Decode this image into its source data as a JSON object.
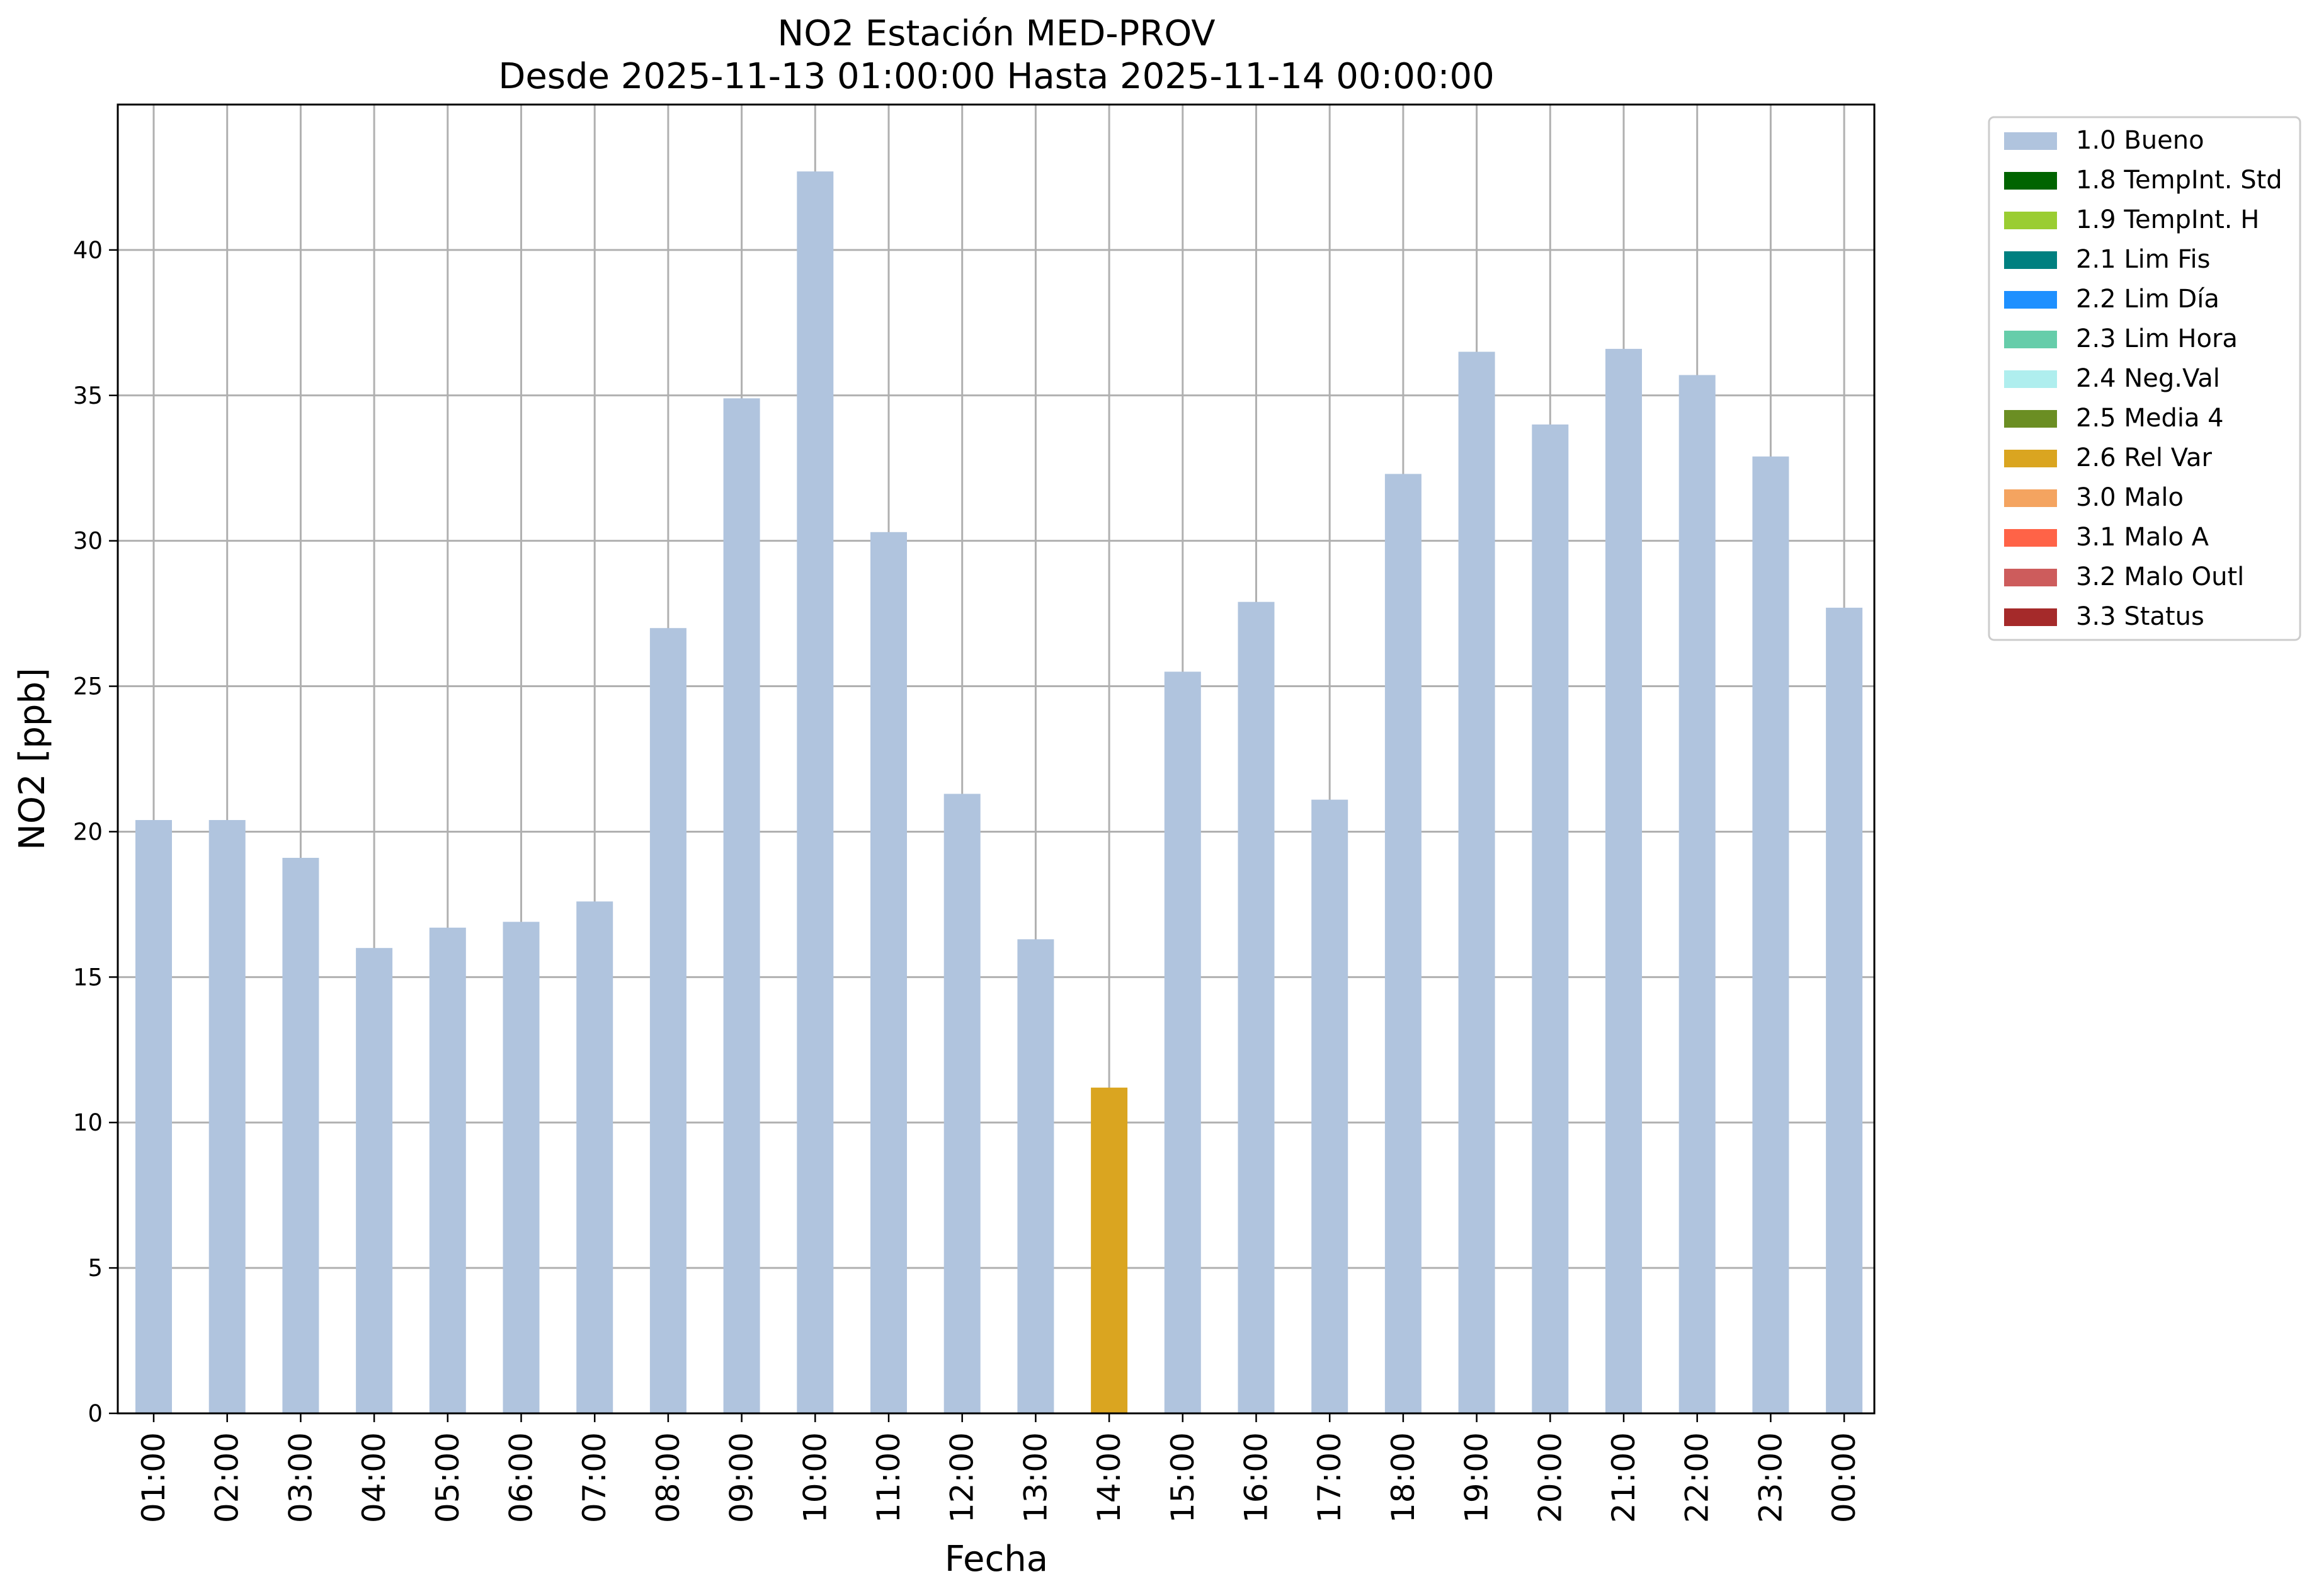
{
  "chart_data": {
    "type": "bar",
    "title": "NO2 Estación MED-PROV",
    "subtitle": "Desde 2025-11-13 01:00:00 Hasta 2025-11-14 00:00:00",
    "xlabel": "Fecha",
    "ylabel": "NO2 [ppb]",
    "ylim": [
      0,
      45
    ],
    "yticks": [
      "0",
      "5",
      "10",
      "15",
      "20",
      "25",
      "30",
      "35",
      "40"
    ],
    "grid": true,
    "legend_position": "outside-top-right",
    "categories": [
      "01:00",
      "02:00",
      "03:00",
      "04:00",
      "05:00",
      "06:00",
      "07:00",
      "08:00",
      "09:00",
      "10:00",
      "11:00",
      "12:00",
      "13:00",
      "14:00",
      "15:00",
      "16:00",
      "17:00",
      "18:00",
      "19:00",
      "20:00",
      "21:00",
      "22:00",
      "23:00",
      "00:00"
    ],
    "values": [
      20.4,
      20.4,
      19.1,
      16.0,
      16.7,
      16.9,
      17.6,
      27.0,
      34.9,
      42.7,
      30.3,
      21.3,
      16.3,
      11.2,
      25.5,
      27.9,
      21.1,
      32.3,
      36.5,
      34.0,
      36.6,
      35.7,
      32.9,
      27.7
    ],
    "flags": [
      "1.0 Bueno",
      "1.0 Bueno",
      "1.0 Bueno",
      "1.0 Bueno",
      "1.0 Bueno",
      "1.0 Bueno",
      "1.0 Bueno",
      "1.0 Bueno",
      "1.0 Bueno",
      "1.0 Bueno",
      "1.0 Bueno",
      "1.0 Bueno",
      "1.0 Bueno",
      "2.6 Rel Var",
      "1.0 Bueno",
      "1.0 Bueno",
      "1.0 Bueno",
      "1.0 Bueno",
      "1.0 Bueno",
      "1.0 Bueno",
      "1.0 Bueno",
      "1.0 Bueno",
      "1.0 Bueno",
      "1.0 Bueno"
    ],
    "legend": [
      {
        "label": "1.0 Bueno",
        "color": "#b0c4de"
      },
      {
        "label": "1.8 TempInt. Std",
        "color": "#006400"
      },
      {
        "label": "1.9 TempInt. H",
        "color": "#9acd32"
      },
      {
        "label": "2.1 Lim Fis",
        "color": "#008080"
      },
      {
        "label": "2.2 Lim Día",
        "color": "#1e90ff"
      },
      {
        "label": "2.3 Lim Hora",
        "color": "#66cdaa"
      },
      {
        "label": "2.4 Neg.Val",
        "color": "#afeeee"
      },
      {
        "label": "2.5 Media 4",
        "color": "#6b8e23"
      },
      {
        "label": "2.6 Rel Var",
        "color": "#daa520"
      },
      {
        "label": "3.0 Malo",
        "color": "#f4a460"
      },
      {
        "label": "3.1 Malo A",
        "color": "#ff6347"
      },
      {
        "label": "3.2 Malo Outl",
        "color": "#cd5c5c"
      },
      {
        "label": "3.3 Status",
        "color": "#a52a2a"
      }
    ]
  }
}
